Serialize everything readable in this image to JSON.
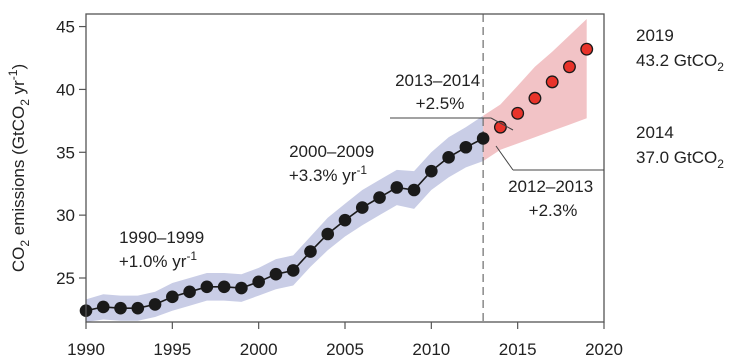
{
  "chart_data": {
    "type": "line",
    "title": "",
    "xlabel": "",
    "ylabel": {
      "main": "CO",
      "sub": "2",
      "rest": " emissions (GtCO",
      "sub2": "2",
      "rest2": " yr",
      "sup": "-1",
      "end": ")"
    },
    "xlim": [
      1990,
      2020
    ],
    "ylim": [
      21.5,
      46
    ],
    "x_ticks": [
      "1990",
      "1995",
      "2000",
      "2005",
      "2010",
      "2015",
      "2020"
    ],
    "y_ticks": [
      "25",
      "30",
      "35",
      "40",
      "45"
    ],
    "projection_start": 2013,
    "series": [
      {
        "style": "historical",
        "color": "#1a1a1a",
        "band_color": "#c9cde6",
        "x": [
          1990,
          1991,
          1992,
          1993,
          1994,
          1995,
          1996,
          1997,
          1998,
          1999,
          2000,
          2001,
          2002,
          2003,
          2004,
          2005,
          2006,
          2007,
          2008,
          2009,
          2010,
          2011,
          2012,
          2013
        ],
        "y": [
          22.4,
          22.7,
          22.6,
          22.6,
          22.9,
          23.5,
          23.9,
          24.3,
          24.3,
          24.2,
          24.7,
          25.3,
          25.6,
          27.1,
          28.5,
          29.6,
          30.6,
          31.4,
          32.2,
          32.0,
          33.5,
          34.6,
          35.4,
          36.1
        ],
        "band_low": [
          21.5,
          21.7,
          21.6,
          21.6,
          21.9,
          22.4,
          22.8,
          23.2,
          23.2,
          23.1,
          23.6,
          24.1,
          24.4,
          25.9,
          27.2,
          28.3,
          29.2,
          30.0,
          30.8,
          30.5,
          32.0,
          33.0,
          33.8,
          34.3
        ],
        "band_high": [
          23.3,
          23.7,
          23.6,
          23.6,
          23.9,
          24.6,
          25.0,
          25.4,
          25.4,
          25.3,
          25.8,
          26.5,
          26.8,
          28.3,
          29.8,
          30.9,
          32.0,
          32.8,
          33.6,
          33.5,
          35.0,
          36.2,
          37.0,
          37.9
        ]
      },
      {
        "style": "projection",
        "color": "#e8332a",
        "band_color": "#f2c3c6",
        "x": [
          2014,
          2015,
          2016,
          2017,
          2018,
          2019
        ],
        "y": [
          37.0,
          38.1,
          39.3,
          40.6,
          41.8,
          43.2
        ],
        "band_low": [
          35.2,
          35.7,
          36.2,
          36.7,
          37.2,
          37.7
        ],
        "band_high": [
          38.8,
          40.3,
          41.8,
          43.0,
          44.3,
          45.6
        ]
      }
    ],
    "annotations": [
      {
        "id": "1990s",
        "lines": [
          "1990–1999",
          "+1.0% yr"
        ],
        "sup": "-1"
      },
      {
        "id": "2000s",
        "lines": [
          "2000–2009",
          "+3.3% yr"
        ],
        "sup": "-1"
      },
      {
        "id": "2013-2014",
        "lines": [
          "2013–2014",
          "+2.5%"
        ]
      },
      {
        "id": "2012-2013",
        "lines": [
          "2012–2013",
          "+2.3%"
        ]
      },
      {
        "id": "2019",
        "lines": [
          "2019",
          "43.2 GtCO"
        ],
        "sub": "2"
      },
      {
        "id": "2014",
        "lines": [
          "2014",
          "37.0 GtCO"
        ],
        "sub": "2"
      }
    ]
  }
}
